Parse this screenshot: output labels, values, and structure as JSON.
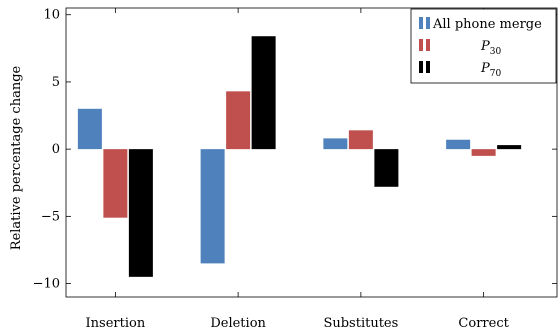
{
  "chart_data": {
    "type": "bar",
    "categories": [
      "Insertion",
      "Deletion",
      "Substitutes",
      "Correct"
    ],
    "series": [
      {
        "name": "All phone merge",
        "color": "#4f81bd",
        "values": [
          3.0,
          -8.5,
          0.8,
          0.7
        ]
      },
      {
        "name": "P30",
        "color": "#c0504d",
        "values": [
          -5.1,
          4.3,
          1.4,
          -0.5
        ]
      },
      {
        "name": "P70",
        "color": "#000000",
        "values": [
          -9.5,
          8.4,
          -2.8,
          0.3
        ]
      }
    ],
    "legend_labels": [
      {
        "base": "All phone merge",
        "sub": ""
      },
      {
        "base": "P",
        "sub": "30"
      },
      {
        "base": "P",
        "sub": "70"
      }
    ],
    "ylabel": "Relative percentage change",
    "xlabel": "",
    "title": "",
    "ylim": [
      -11,
      10.5
    ],
    "yticks": [
      10,
      5,
      0,
      -5,
      -10
    ],
    "ytick_labels": [
      "10",
      "5",
      "0",
      "−5",
      "−10"
    ],
    "legend_position": "top-right",
    "grid": false
  }
}
